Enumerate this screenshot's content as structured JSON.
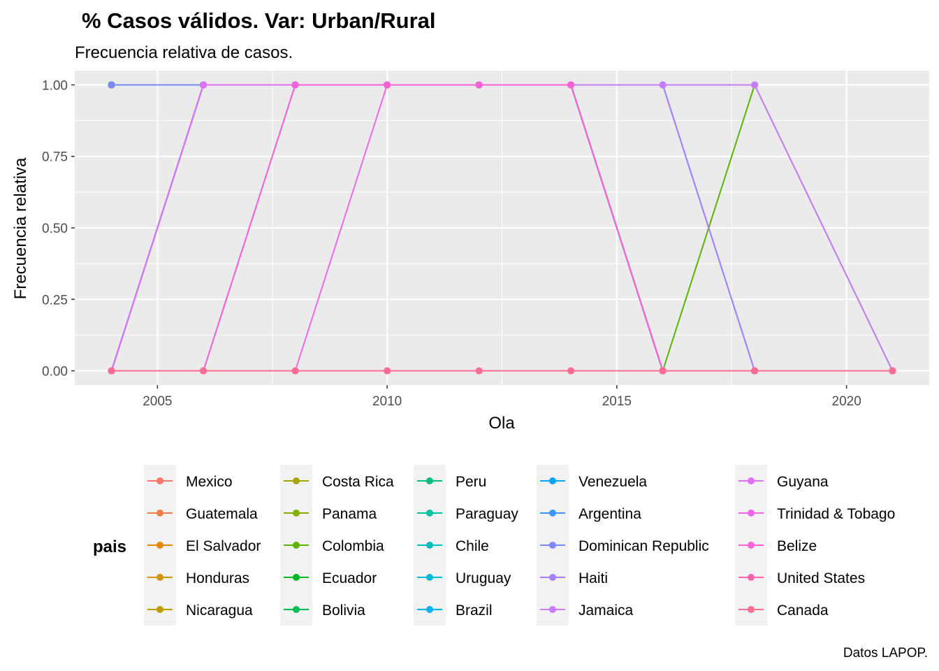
{
  "chart_data": {
    "type": "line",
    "title": "% Casos válidos. Var: Urban/Rural",
    "subtitle": "Frecuencia relativa de casos.",
    "xlabel": "Ola",
    "ylabel": "Frecuencia relativa",
    "caption": "Datos LAPOP.",
    "legend_title": "pais",
    "legend_position": "bottom",
    "grid": true,
    "xlim": [
      2003.2,
      2021.8
    ],
    "ylim": [
      -0.05,
      1.05
    ],
    "x_ticks": [
      2005,
      2010,
      2015,
      2020
    ],
    "y_ticks": [
      0,
      0.25,
      0.5,
      0.75,
      1
    ],
    "x_tick_labels": [
      "2005",
      "2010",
      "2015",
      "2020"
    ],
    "y_tick_labels": [
      "0.00",
      "0.25",
      "0.50",
      "0.75",
      "1.00"
    ],
    "series": [
      {
        "name": "Mexico",
        "color": "#F8766D",
        "x": [
          2004,
          2006,
          2008,
          2010,
          2012,
          2014,
          2016,
          2018,
          2021
        ],
        "y": [
          1,
          1,
          1,
          1,
          1,
          1,
          0,
          0,
          0
        ]
      },
      {
        "name": "Guatemala",
        "color": "#EF7F48",
        "x": [
          2004,
          2006,
          2008,
          2010,
          2012,
          2014,
          2016,
          2018,
          2021
        ],
        "y": [
          1,
          1,
          1,
          1,
          1,
          1,
          0,
          0,
          0
        ]
      },
      {
        "name": "El Salvador",
        "color": "#E38900",
        "x": [
          2004,
          2006,
          2008,
          2010,
          2012,
          2014,
          2016,
          2018,
          2021
        ],
        "y": [
          1,
          1,
          1,
          1,
          1,
          1,
          0,
          0,
          0
        ]
      },
      {
        "name": "Honduras",
        "color": "#D09400",
        "x": [
          2004,
          2006,
          2008,
          2010,
          2012,
          2014,
          2016,
          2018,
          2021
        ],
        "y": [
          1,
          1,
          1,
          1,
          1,
          1,
          0,
          0,
          0
        ]
      },
      {
        "name": "Nicaragua",
        "color": "#BB9D00",
        "x": [
          2004,
          2006,
          2008,
          2010,
          2012,
          2014,
          2016,
          2018,
          2021
        ],
        "y": [
          1,
          1,
          1,
          1,
          1,
          1,
          0,
          0,
          0
        ]
      },
      {
        "name": "Costa Rica",
        "color": "#A3A500",
        "x": [
          2004,
          2006,
          2008,
          2010,
          2012,
          2014,
          2016,
          2018,
          2021
        ],
        "y": [
          1,
          1,
          1,
          1,
          1,
          1,
          0,
          0,
          0
        ]
      },
      {
        "name": "Panama",
        "color": "#85AD00",
        "x": [
          2004,
          2006,
          2008,
          2010,
          2012,
          2014,
          2016,
          2018,
          2021
        ],
        "y": [
          1,
          1,
          1,
          1,
          1,
          1,
          0,
          0,
          0
        ]
      },
      {
        "name": "Colombia",
        "color": "#5BB300",
        "x": [
          2004,
          2006,
          2008,
          2010,
          2012,
          2014,
          2016,
          2018,
          2021
        ],
        "y": [
          1,
          1,
          1,
          1,
          1,
          1,
          0,
          1,
          0
        ]
      },
      {
        "name": "Ecuador",
        "color": "#00B81F",
        "x": [
          2004,
          2006,
          2008,
          2010,
          2012,
          2014,
          2016,
          2018,
          2021
        ],
        "y": [
          1,
          1,
          1,
          1,
          1,
          1,
          0,
          0,
          0
        ]
      },
      {
        "name": "Bolivia",
        "color": "#00BC56",
        "x": [
          2004,
          2006,
          2008,
          2010,
          2012,
          2014,
          2016,
          2018,
          2021
        ],
        "y": [
          1,
          1,
          1,
          1,
          1,
          1,
          0,
          0,
          0
        ]
      },
      {
        "name": "Peru",
        "color": "#00BF7D",
        "x": [
          2004,
          2006,
          2008,
          2010,
          2012,
          2014,
          2016,
          2018,
          2021
        ],
        "y": [
          0,
          1,
          1,
          1,
          1,
          1,
          0,
          0,
          0
        ]
      },
      {
        "name": "Paraguay",
        "color": "#00C19F",
        "x": [
          2004,
          2006,
          2008,
          2010,
          2012,
          2014,
          2016,
          2018,
          2021
        ],
        "y": [
          0,
          1,
          1,
          1,
          1,
          1,
          0,
          0,
          0
        ]
      },
      {
        "name": "Chile",
        "color": "#00BFBE",
        "x": [
          2004,
          2006,
          2008,
          2010,
          2012,
          2014,
          2016,
          2018,
          2021
        ],
        "y": [
          0,
          1,
          1,
          1,
          1,
          1,
          0,
          0,
          0
        ]
      },
      {
        "name": "Uruguay",
        "color": "#00BAD8",
        "x": [
          2004,
          2006,
          2008,
          2010,
          2012,
          2014,
          2016,
          2018,
          2021
        ],
        "y": [
          0,
          1,
          1,
          1,
          1,
          1,
          0,
          0,
          0
        ]
      },
      {
        "name": "Brazil",
        "color": "#00B2EE",
        "x": [
          2004,
          2006,
          2008,
          2010,
          2012,
          2014,
          2016,
          2018,
          2021
        ],
        "y": [
          0,
          1,
          1,
          1,
          1,
          1,
          0,
          0,
          0
        ]
      },
      {
        "name": "Venezuela",
        "color": "#00A5FF",
        "x": [
          2004,
          2006,
          2008,
          2010,
          2012,
          2014,
          2016,
          2018,
          2021
        ],
        "y": [
          0,
          1,
          1,
          1,
          1,
          1,
          0,
          0,
          0
        ]
      },
      {
        "name": "Argentina",
        "color": "#3E96FF",
        "x": [
          2004,
          2006,
          2008,
          2010,
          2012,
          2014,
          2016,
          2018,
          2021
        ],
        "y": [
          0,
          0,
          1,
          1,
          1,
          1,
          0,
          0,
          0
        ]
      },
      {
        "name": "Dominican Republic",
        "color": "#7F87FF",
        "x": [
          2004,
          2006,
          2008,
          2010,
          2012,
          2014,
          2016,
          2018,
          2021
        ],
        "y": [
          1,
          1,
          1,
          1,
          1,
          1,
          1,
          0,
          0
        ]
      },
      {
        "name": "Haiti",
        "color": "#A680FF",
        "x": [
          2004,
          2006,
          2008,
          2010,
          2012,
          2014,
          2016,
          2018,
          2021
        ],
        "y": [
          0,
          1,
          1,
          1,
          1,
          1,
          1,
          0,
          0
        ]
      },
      {
        "name": "Jamaica",
        "color": "#C77CFF",
        "x": [
          2004,
          2006,
          2008,
          2010,
          2012,
          2014,
          2016,
          2018,
          2021
        ],
        "y": [
          0,
          1,
          1,
          1,
          1,
          1,
          1,
          1,
          0
        ]
      },
      {
        "name": "Guyana",
        "color": "#E16EF8",
        "x": [
          2004,
          2006,
          2008,
          2010,
          2012,
          2014,
          2016,
          2018,
          2021
        ],
        "y": [
          0,
          1,
          1,
          1,
          1,
          1,
          0,
          0,
          0
        ]
      },
      {
        "name": "Trinidad & Tobago",
        "color": "#F066EA",
        "x": [
          2004,
          2006,
          2008,
          2010,
          2012,
          2014,
          2016,
          2018,
          2021
        ],
        "y": [
          0,
          0,
          0,
          1,
          1,
          1,
          0,
          0,
          0
        ]
      },
      {
        "name": "Belize",
        "color": "#FA62D6",
        "x": [
          2004,
          2006,
          2008,
          2010,
          2012,
          2014,
          2016,
          2018,
          2021
        ],
        "y": [
          0,
          0,
          1,
          1,
          1,
          1,
          0,
          0,
          0
        ]
      },
      {
        "name": "United States",
        "color": "#FF64B0",
        "x": [
          2004,
          2006,
          2008,
          2010,
          2012,
          2014,
          2016,
          2018,
          2021
        ],
        "y": [
          0,
          0,
          0,
          0,
          0,
          0,
          0,
          0,
          0
        ]
      },
      {
        "name": "Canada",
        "color": "#FF6C91",
        "x": [
          2004,
          2006,
          2008,
          2010,
          2012,
          2014,
          2016,
          2018,
          2021
        ],
        "y": [
          0,
          0,
          0,
          0,
          0,
          0,
          0,
          0,
          0
        ]
      }
    ]
  }
}
